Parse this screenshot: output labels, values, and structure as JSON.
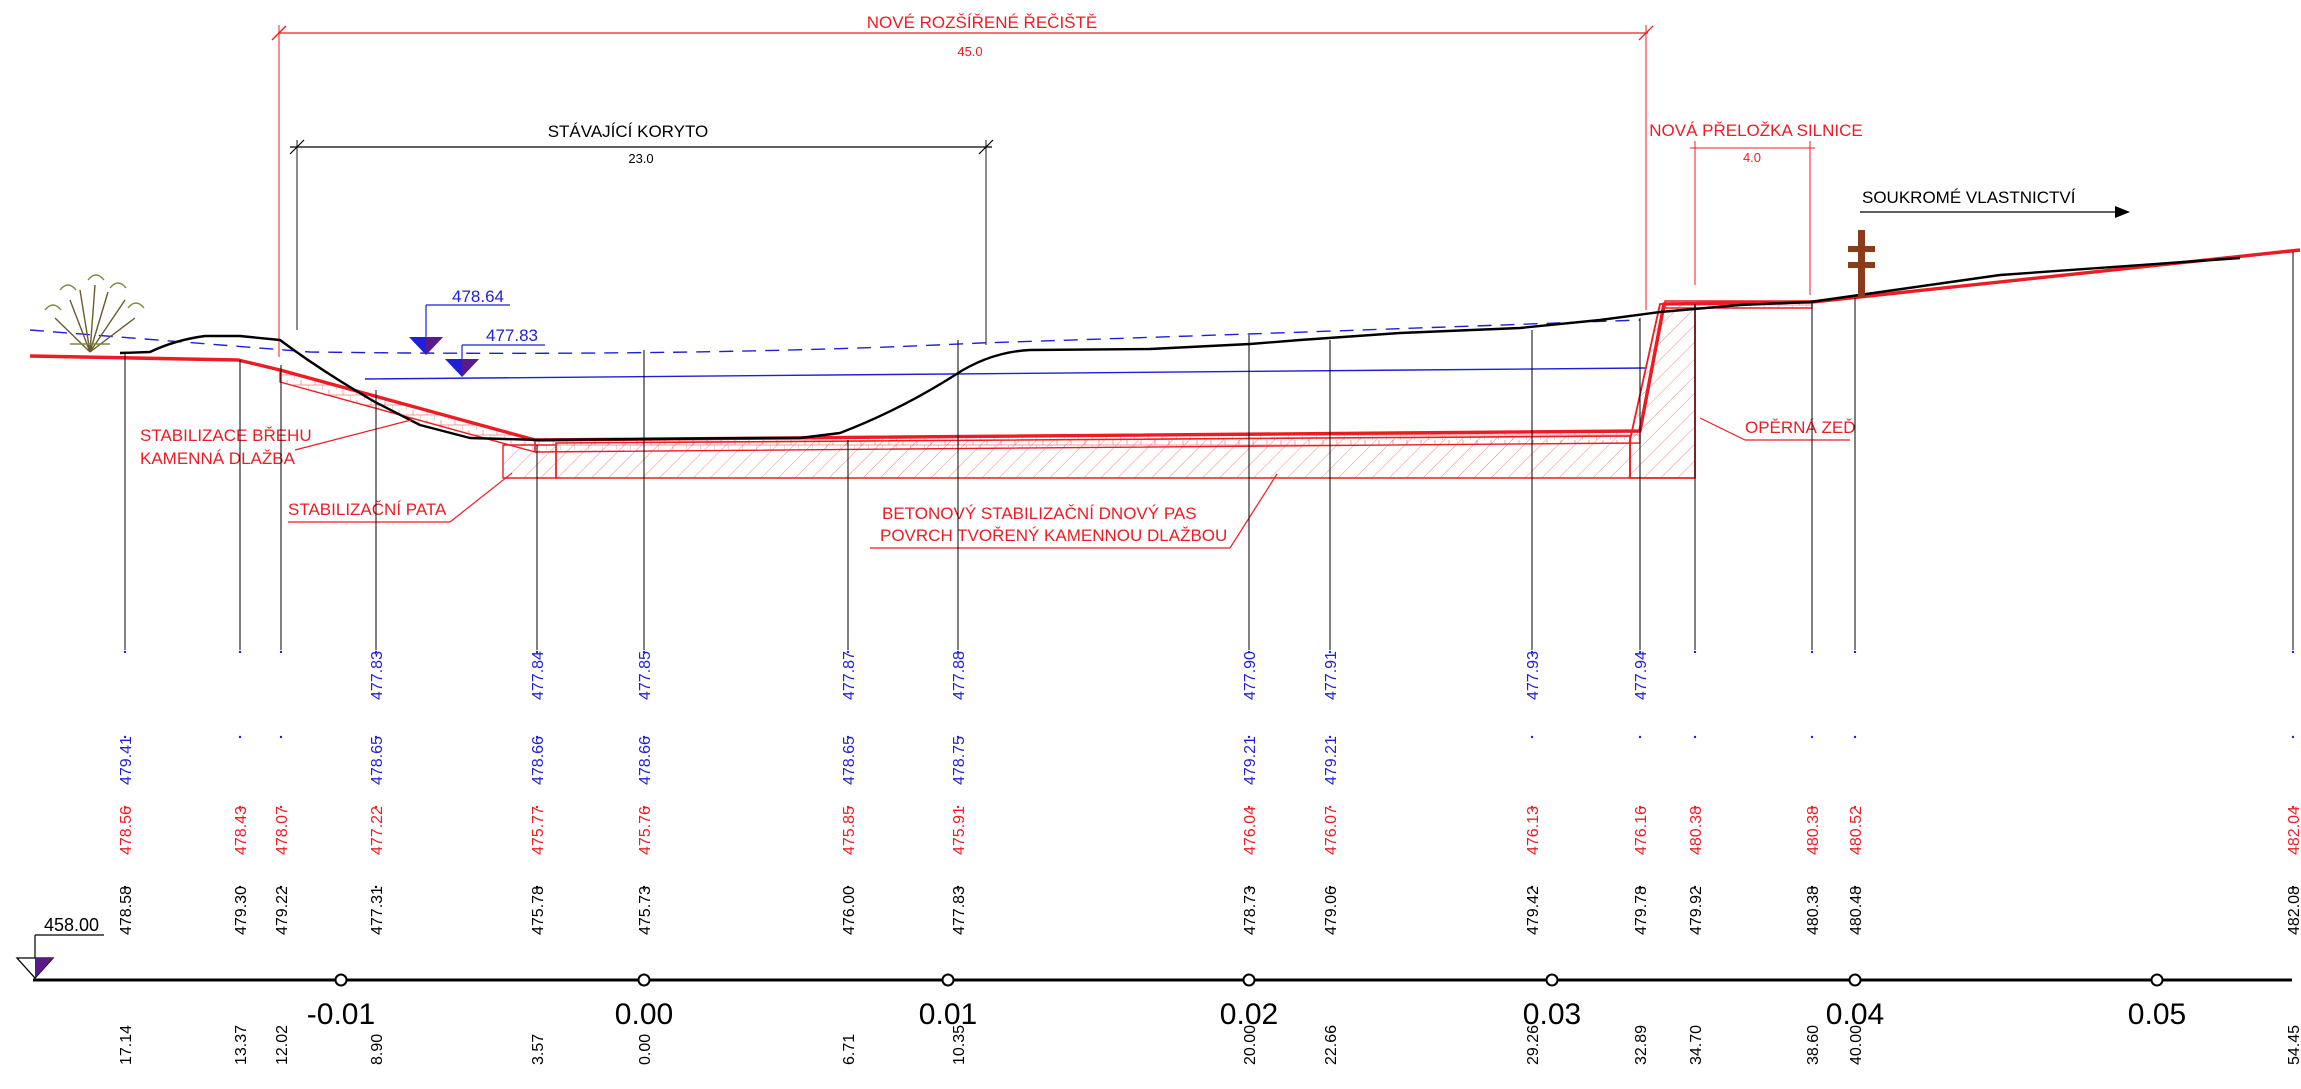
{
  "colors": {
    "design": "#ed1c24",
    "terrain": "#000000",
    "water": "#1f1fd9",
    "marker": "#5a1a8a",
    "pole": "#8b3a1a"
  },
  "labels": {
    "new_channel": "NOVÉ ROZŠÍŘENÉ ŘEČIŠTĚ",
    "new_channel_width": "45.0",
    "existing_channel": "STÁVAJÍCÍ KORYTO",
    "existing_channel_width": "23.0",
    "road": "NOVÁ PŘELOŽKA SILNICE",
    "road_width": "4.0",
    "private": "SOUKROMÉ VLASTNICTVÍ",
    "bank_1": "STABILIZACE BŘEHU",
    "bank_2": "KAMENNÁ DLAŽBA",
    "toe": "STABILIZAČNÍ PATA",
    "bed_1": "BETONOVÝ STABILIZAČNÍ DNOVÝ PAS",
    "bed_2": "POVRCH TVOŘENÝ KAMENNOU DLAŽBOU",
    "wall": "OPĚRNÁ ZEĎ",
    "water_level_1": "478.64",
    "water_level_2": "477.83",
    "datum": "458.00"
  },
  "axis": {
    "ticks": [
      "-0.01",
      "0.00",
      "0.01",
      "0.02",
      "0.03",
      "0.04",
      "0.05"
    ]
  },
  "stations": [
    {
      "blue1": "",
      "blue2": "479.41",
      "red": "478.56",
      "black": "478.58",
      "dist": "17.14"
    },
    {
      "blue1": "",
      "blue2": "",
      "red": "478.43",
      "black": "479.30",
      "dist": "13.37"
    },
    {
      "blue1": "",
      "blue2": "",
      "red": "478.07",
      "black": "479.22",
      "dist": "12.02"
    },
    {
      "blue1": "477.83",
      "blue2": "478.65",
      "red": "477.22",
      "black": "477.31",
      "dist": "8.90"
    },
    {
      "blue1": "477.84",
      "blue2": "478.66",
      "red": "475.77",
      "black": "475.78",
      "dist": "3.57"
    },
    {
      "blue1": "477.85",
      "blue2": "478.66",
      "red": "475.76",
      "black": "475.73",
      "dist": "0.00"
    },
    {
      "blue1": "477.87",
      "blue2": "478.65",
      "red": "475.85",
      "black": "476.00",
      "dist": "6.71"
    },
    {
      "blue1": "477.88",
      "blue2": "478.75",
      "red": "475.91",
      "black": "477.83",
      "dist": "10.35"
    },
    {
      "blue1": "477.90",
      "blue2": "479.21",
      "red": "476.04",
      "black": "478.73",
      "dist": "20.00"
    },
    {
      "blue1": "477.91",
      "blue2": "479.21",
      "red": "476.07",
      "black": "479.06",
      "dist": "22.66"
    },
    {
      "blue1": "477.93",
      "blue2": "",
      "red": "476.13",
      "black": "479.42",
      "dist": "29.26"
    },
    {
      "blue1": "477.94",
      "blue2": "",
      "red": "476.16",
      "black": "479.78",
      "dist": "32.89"
    },
    {
      "blue1": "",
      "blue2": "",
      "red": "480.38",
      "black": "479.92",
      "dist": "34.70"
    },
    {
      "blue1": "",
      "blue2": "",
      "red": "480.38",
      "black": "480.38",
      "dist": "38.60"
    },
    {
      "blue1": "",
      "blue2": "",
      "red": "480.52",
      "black": "480.48",
      "dist": "40.00"
    },
    {
      "blue1": "",
      "blue2": "",
      "red": "482.04",
      "black": "482.08",
      "dist": "54.45"
    }
  ]
}
